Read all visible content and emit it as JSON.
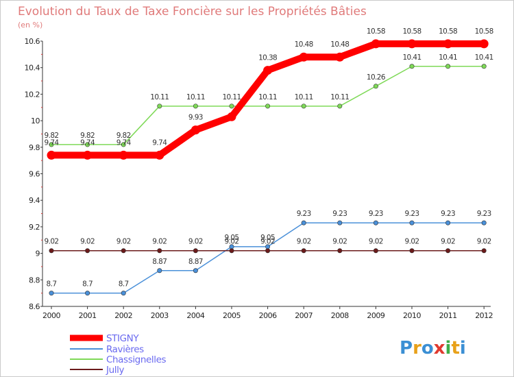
{
  "chart_data": {
    "type": "line",
    "title": "Evolution du Taux de Taxe Foncière sur les Propriétés Bâties",
    "ylabel": "(en %)",
    "xlabel": "",
    "categories": [
      "2000",
      "2001",
      "2002",
      "2003",
      "2004",
      "2005",
      "2006",
      "2007",
      "2008",
      "2009",
      "2010",
      "2011",
      "2012"
    ],
    "ylim": [
      8.6,
      10.6
    ],
    "yticks": [
      8.6,
      8.8,
      9,
      9.2,
      9.4,
      9.6,
      9.8,
      10,
      10.2,
      10.4,
      10.6
    ],
    "ytick_labels": [
      "8.6",
      "8.8",
      "9",
      "9.2",
      "9.4",
      "9.6",
      "9.8",
      "10",
      "10.2",
      "10.4",
      "10.6"
    ],
    "grid": false,
    "legend_position": "bottom-left",
    "series": [
      {
        "name": "STIGNY",
        "color": "#ff0000",
        "emphasis": true,
        "values": [
          9.74,
          9.74,
          9.74,
          9.74,
          9.93,
          10.03,
          10.38,
          10.48,
          10.48,
          10.58,
          10.58,
          10.58,
          10.58
        ],
        "labels": [
          "9.74",
          "9.74",
          "9.74",
          "9.74",
          "9.93",
          "10.03",
          "10.38",
          "10.48",
          "10.48",
          "10.58",
          "10.58",
          "10.58",
          "10.58"
        ],
        "label_shown": [
          true,
          true,
          true,
          true,
          true,
          false,
          true,
          true,
          true,
          true,
          true,
          true,
          true
        ]
      },
      {
        "name": "Ravières",
        "color": "#4a90d9",
        "emphasis": false,
        "values": [
          8.7,
          8.7,
          8.7,
          8.87,
          8.87,
          9.05,
          9.05,
          9.23,
          9.23,
          9.23,
          9.23,
          9.23,
          9.23
        ],
        "labels": [
          "8.7",
          "8.7",
          "8.7",
          "8.87",
          "8.87",
          "9.05",
          "9.05",
          "9.23",
          "9.23",
          "9.23",
          "9.23",
          "9.23",
          "9.23"
        ],
        "label_shown": [
          true,
          true,
          true,
          true,
          true,
          true,
          true,
          true,
          true,
          true,
          true,
          true,
          true
        ]
      },
      {
        "name": "Chassignelles",
        "color": "#7ed957",
        "emphasis": false,
        "values": [
          9.82,
          9.82,
          9.82,
          10.11,
          10.11,
          10.11,
          10.11,
          10.11,
          10.11,
          10.26,
          10.41,
          10.41,
          10.41
        ],
        "labels": [
          "9.82",
          "9.82",
          "9.82",
          "10.11",
          "10.11",
          "10.11",
          "10.11",
          "10.11",
          "10.11",
          "10.26",
          "10.41",
          "10.41",
          "10.41"
        ],
        "label_shown": [
          true,
          true,
          true,
          true,
          true,
          true,
          true,
          true,
          true,
          true,
          true,
          true,
          true
        ]
      },
      {
        "name": "Jully",
        "color": "#6b1a1a",
        "emphasis": false,
        "values": [
          9.02,
          9.02,
          9.02,
          9.02,
          9.02,
          9.02,
          9.02,
          9.02,
          9.02,
          9.02,
          9.02,
          9.02,
          9.02
        ],
        "labels": [
          "9.02",
          "9.02",
          "9.02",
          "9.02",
          "9.02",
          "9.02",
          "9.02",
          "9.02",
          "9.02",
          "9.02",
          "9.02",
          "9.02",
          "9.02"
        ],
        "label_shown": [
          true,
          true,
          true,
          true,
          true,
          true,
          true,
          true,
          true,
          true,
          true,
          true,
          true
        ]
      }
    ]
  },
  "logo": {
    "text": "Proxiti",
    "letters": [
      "P",
      "r",
      "o",
      "x",
      "i",
      "t",
      "i"
    ],
    "colors": [
      "#3b8fd4",
      "#e8a11a",
      "#3b8fd4",
      "#e03a2f",
      "#3fae49",
      "#e8a11a",
      "#3b8fd4"
    ]
  }
}
